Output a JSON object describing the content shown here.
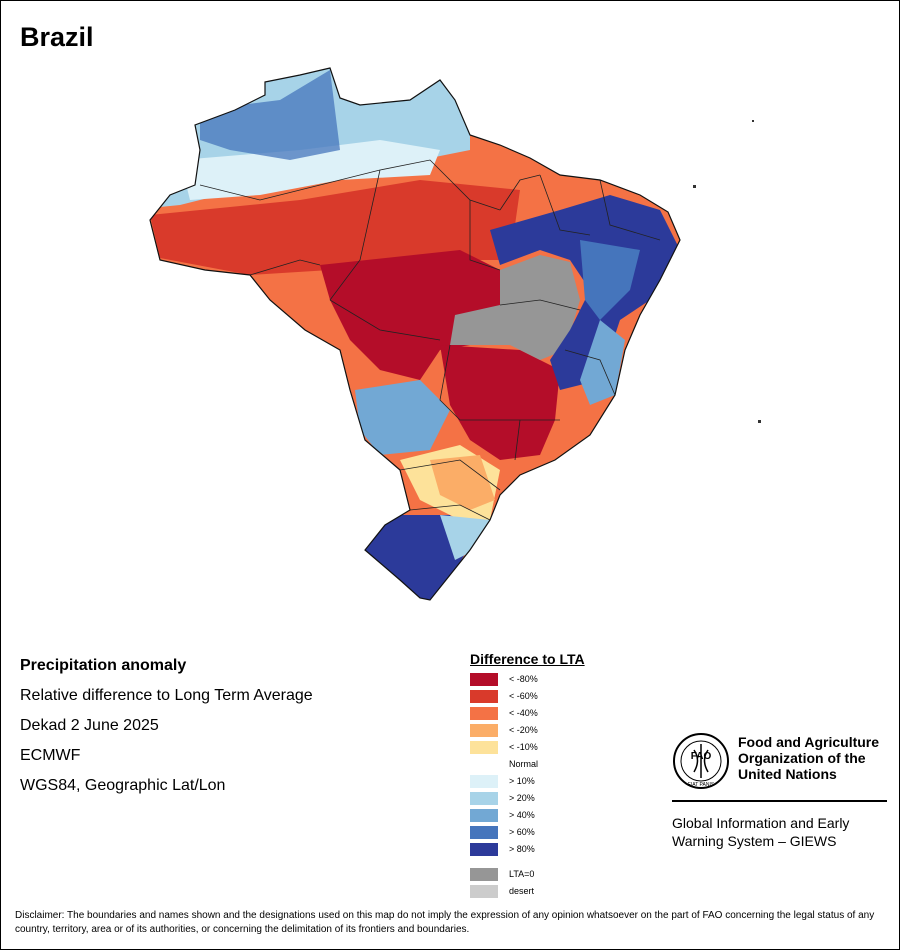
{
  "title": "Brazil",
  "info": {
    "heading": "Precipitation anomaly",
    "subtitle": "Relative difference to Long Term Average",
    "period": "Dekad 2 June 2025",
    "source": "ECMWF",
    "projection": "WGS84, Geographic Lat/Lon"
  },
  "legend": {
    "title": "Difference to LTA",
    "classes": [
      {
        "label": "< -80%",
        "color": "#b40d29"
      },
      {
        "label": "< -60%",
        "color": "#d93a2b"
      },
      {
        "label": "< -40%",
        "color": "#f47245"
      },
      {
        "label": "< -20%",
        "color": "#fbad67"
      },
      {
        "label": "< -10%",
        "color": "#fde29a"
      },
      {
        "label": "Normal",
        "color": "#ffffff"
      },
      {
        "label": "> 10%",
        "color": "#ddf1f8"
      },
      {
        "label": "> 20%",
        "color": "#a7d3e8"
      },
      {
        "label": "> 40%",
        "color": "#72a8d4"
      },
      {
        "label": "> 60%",
        "color": "#4575bc"
      },
      {
        "label": "> 80%",
        "color": "#2c3a9a"
      }
    ],
    "extra": [
      {
        "label": "LTA=0",
        "color": "#969696"
      },
      {
        "label": "desert",
        "color": "#cccccc"
      }
    ]
  },
  "fao": {
    "name_line1": "Food and Agriculture",
    "name_line2": "Organization of the",
    "name_line3": "United Nations",
    "logo_text": "FAO",
    "motto": "FIAT PANIS",
    "sub_line1": "Global Information and Early",
    "sub_line2": "Warning System – GIEWS"
  },
  "disclaimer": "Disclaimer: The boundaries and names shown and the designations used on this map do not imply the expression of any opinion whatsoever on the part of FAO concerning the legal status of any country, territory, area or of its authorities, or concerning the delimitation of its frontiers and boundaries."
}
